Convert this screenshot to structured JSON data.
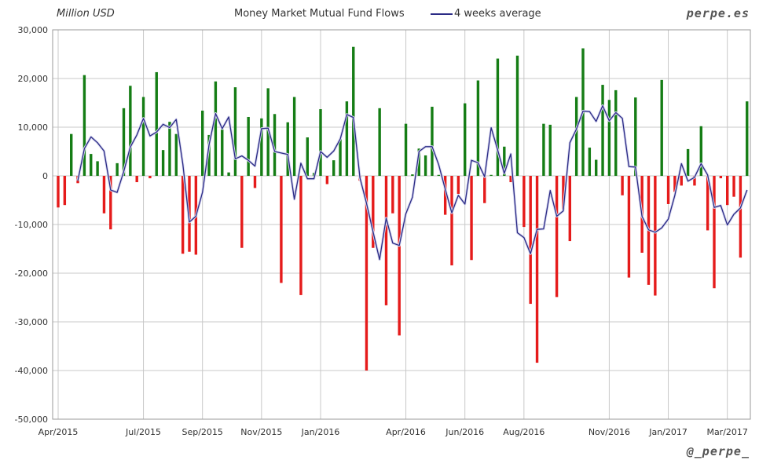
{
  "header": {
    "unit_label": "Million USD",
    "title": "Money Market Mutual Fund Flows",
    "legend_label": "4 weeks average",
    "brand": "perpe.es",
    "handle": "@_perpe_"
  },
  "colors": {
    "positive": "#157d15",
    "negative": "#e51b1b",
    "average_line": "#2b2b85",
    "grid": "#c8c8c8"
  },
  "chart_data": {
    "type": "bar",
    "title": "Money Market Mutual Fund Flows",
    "ylabel": "Million USD",
    "xlabel": "",
    "ylim": [
      -50000,
      30000
    ],
    "yticks": [
      30000,
      20000,
      10000,
      0,
      -10000,
      -20000,
      -30000,
      -40000,
      -50000
    ],
    "ytick_labels": [
      "30,000",
      "20,000",
      "10,000",
      "0",
      "-10,000",
      "-20,000",
      "-30,000",
      "-40,000",
      "-50,000"
    ],
    "xtick_labels": [
      "Apr/2015",
      "Jul/2015",
      "Sep/2015",
      "Nov/2015",
      "Jan/2016",
      "Apr/2016",
      "Jun/2016",
      "Aug/2016",
      "Nov/2016",
      "Jan/2017",
      "Mar/2017"
    ],
    "xtick_week_index": [
      0,
      13,
      22,
      31,
      40,
      53,
      62,
      71,
      84,
      93,
      102
    ],
    "grid": true,
    "legend": "top",
    "series": [
      {
        "name": "Weekly flows",
        "type": "bar",
        "values": [
          -6500,
          -6000,
          8600,
          -1500,
          20700,
          4500,
          3000,
          -7700,
          -11000,
          2600,
          13900,
          18500,
          -1300,
          16200,
          -500,
          21300,
          5300,
          11100,
          8600,
          -16000,
          -15600,
          -16200,
          13400,
          8400,
          19400,
          9500,
          700,
          18200,
          -14800,
          12100,
          -2500,
          11800,
          18000,
          12700,
          -22000,
          11000,
          16200,
          -24500,
          7900,
          600,
          13700,
          -1700,
          3200,
          7600,
          15300,
          26500,
          -1000,
          -40000,
          -14800,
          13900,
          -26600,
          -7700,
          -32800,
          10700,
          300,
          5600,
          4200,
          14200,
          200,
          -8000,
          -18400,
          -3700,
          14900,
          -17300,
          19600,
          -5600,
          200,
          24100,
          6000,
          -1300,
          24700,
          -10500,
          -26300,
          -38400,
          10700,
          10500,
          -24900,
          -6900,
          -13400,
          16200,
          26200,
          5800,
          3300,
          18700,
          15600,
          17600,
          -4000,
          -20900,
          16100,
          -15800,
          -22400,
          -24600,
          19700,
          -5800,
          -3300,
          -2000,
          5500,
          -2000,
          10200,
          -11200,
          -23100,
          -500,
          -6000,
          -4300,
          -16800,
          15300
        ]
      },
      {
        "name": "4 weeks average",
        "type": "line",
        "values": [
          null,
          null,
          null,
          -1000,
          5600,
          8000,
          6800,
          5100,
          -2900,
          -3400,
          900,
          5900,
          8400,
          11800,
          8200,
          9000,
          10600,
          9900,
          11600,
          2400,
          -9500,
          -8300,
          -3400,
          6300,
          12800,
          9700,
          12100,
          3500,
          4100,
          3200,
          2000,
          9700,
          9800,
          5000,
          4700,
          4400,
          -4800,
          2600,
          -600,
          -600,
          5000,
          3800,
          5100,
          7600,
          12600,
          12000,
          -400,
          -5600,
          -11500,
          -17200,
          -8700,
          -13800,
          -14300,
          -7800,
          -4400,
          5000,
          6000,
          6000,
          2300,
          -2700,
          -7600,
          -4000,
          -5800,
          3200,
          2700,
          -200,
          9900,
          5300,
          500,
          4500,
          -11700,
          -12700,
          -16000,
          -11000,
          -10900,
          -3000,
          -8300,
          -7200,
          6800,
          9600,
          13300,
          13200,
          11200,
          14400,
          11300,
          13000,
          11800,
          1900,
          1800,
          -8300,
          -11100,
          -11600,
          -10700,
          -8900,
          -4000,
          2500,
          -1100,
          -300,
          2500,
          200,
          -6500,
          -6100,
          -10100,
          -7900,
          -6600,
          -2900
        ]
      }
    ]
  }
}
